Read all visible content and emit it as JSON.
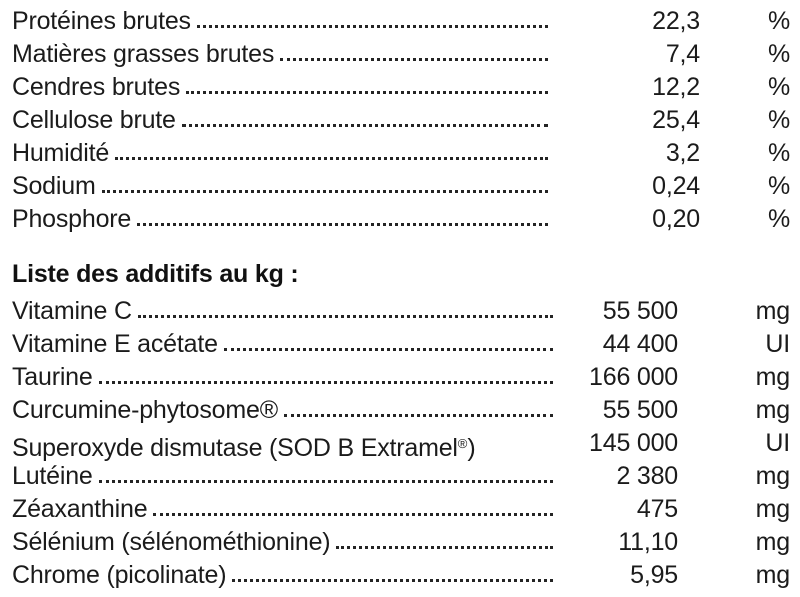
{
  "composition": {
    "rows": [
      {
        "label": "Protéines brutes",
        "value": "22,3",
        "unit": "%"
      },
      {
        "label": "Matières grasses brutes",
        "value": "7,4",
        "unit": "%"
      },
      {
        "label": "Cendres brutes",
        "value": "12,2",
        "unit": "%"
      },
      {
        "label": "Cellulose brute",
        "value": "25,4",
        "unit": "%"
      },
      {
        "label": "Humidité",
        "value": "3,2",
        "unit": "%"
      },
      {
        "label": "Sodium",
        "value": "0,24",
        "unit": "%"
      },
      {
        "label": "Phosphore",
        "value": "0,20",
        "unit": "%"
      }
    ]
  },
  "additives": {
    "heading": "Liste des additifs au kg :",
    "rows": [
      {
        "label": "Vitamine C",
        "value": "55 500",
        "unit": "mg"
      },
      {
        "label": "Vitamine E acétate",
        "value": "44 400",
        "unit": "UI"
      },
      {
        "label": "Taurine",
        "value": "166 000",
        "unit": "mg"
      },
      {
        "label": "Curcumine-phytosome®",
        "value": "55 500",
        "unit": "mg"
      },
      {
        "label": "Superoxyde dismutase (SOD B Extramel",
        "label_sup": "®",
        "label_suffix": ")",
        "value": "145 000",
        "unit": "UI"
      },
      {
        "label": "Lutéine",
        "value": "2 380",
        "unit": "mg"
      },
      {
        "label": "Zéaxanthine",
        "value": "475",
        "unit": "mg"
      },
      {
        "label": "Sélénium (sélénométhionine)",
        "value": "11,10",
        "unit": "mg"
      },
      {
        "label": "Chrome (picolinate)",
        "value": "5,95",
        "unit": "mg"
      }
    ]
  }
}
